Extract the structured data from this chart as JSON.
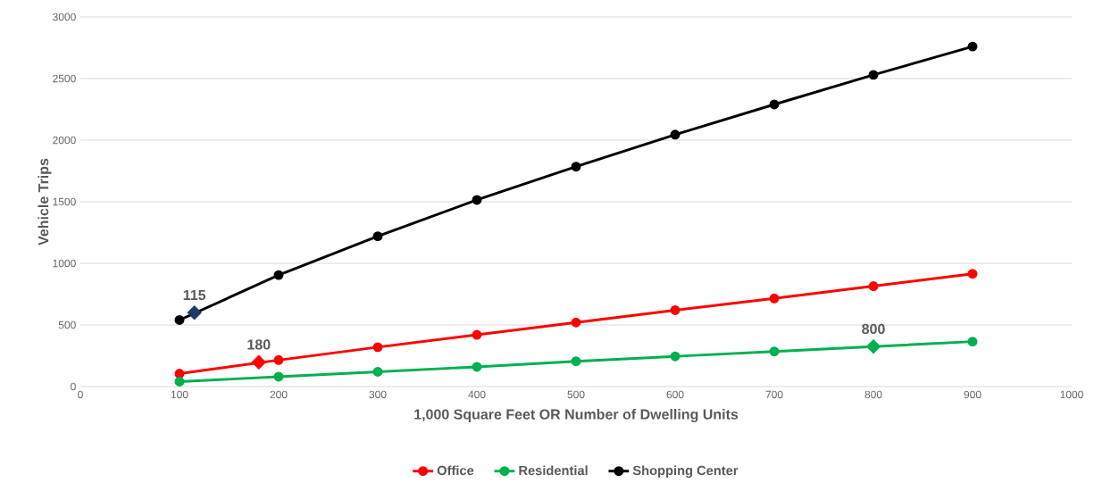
{
  "chart_data": {
    "type": "line",
    "xlabel": "1,000  Square Feet OR Number of Dwelling Units",
    "ylabel": "Vehicle Trips",
    "x": [
      100,
      200,
      300,
      400,
      500,
      600,
      700,
      800,
      900
    ],
    "series": [
      {
        "name": "Office",
        "color": "#ff0000",
        "values": [
          105,
          215,
          320,
          420,
          520,
          620,
          715,
          815,
          915
        ]
      },
      {
        "name": "Residential",
        "color": "#00b050",
        "values": [
          40,
          80,
          120,
          160,
          205,
          245,
          285,
          null,
          365
        ]
      },
      {
        "name": "Shopping Center",
        "color": "#000000",
        "values": [
          540,
          905,
          1220,
          1515,
          1785,
          2045,
          2290,
          2530,
          2760
        ]
      },
      {
        "type": "scatter",
        "marker": "diamond",
        "color": "#1f3864",
        "x": [
          115
        ],
        "values": [
          600
        ]
      },
      {
        "type": "scatter",
        "marker": "diamond",
        "color": "#ff0000",
        "x": [
          180
        ],
        "values": [
          198
        ]
      },
      {
        "type": "scatter",
        "marker": "diamond",
        "color": "#00b050",
        "x": [
          800
        ],
        "values": [
          325
        ]
      }
    ],
    "annotations": [
      {
        "text": "115",
        "x": 115,
        "y": 600
      },
      {
        "text": "180",
        "x": 180,
        "y": 198
      },
      {
        "text": "800",
        "x": 800,
        "y": 325
      }
    ],
    "xlim": [
      0,
      1000
    ],
    "xticks": [
      0,
      100,
      200,
      300,
      400,
      500,
      600,
      700,
      800,
      900,
      1000
    ],
    "ylim": [
      0,
      3000
    ],
    "yticks": [
      0,
      500,
      1000,
      1500,
      2000,
      2500,
      3000
    ],
    "grid": "y",
    "legend": "bottom",
    "marker": "circle",
    "line_style": "solid"
  }
}
